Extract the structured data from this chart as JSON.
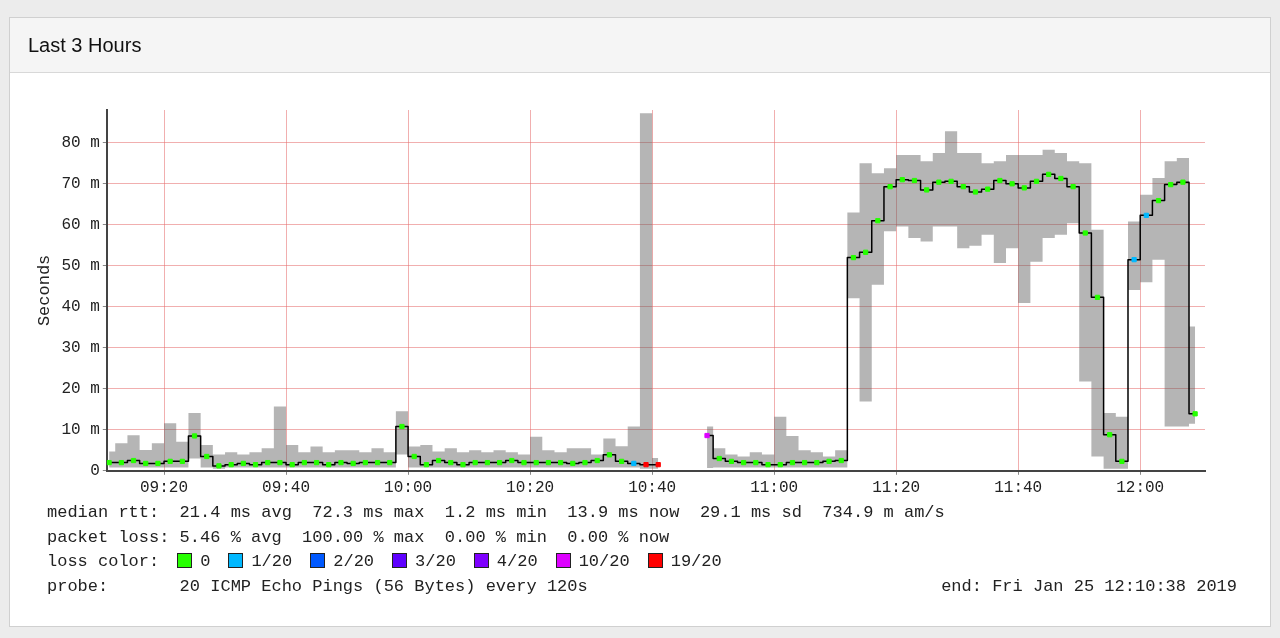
{
  "chart_data": {
    "type": "step",
    "title": "Last 3 Hours",
    "ylabel": "Seconds",
    "legend_title": "loss color:",
    "legend": "bottom",
    "grid": true,
    "marker": "square",
    "xlim": [
      9.177,
      12.177
    ],
    "xticks": [
      {
        "value": 9.3333,
        "label": "09:20"
      },
      {
        "value": 9.6667,
        "label": "09:40"
      },
      {
        "value": 10,
        "label": "10:00"
      },
      {
        "value": 10.3333,
        "label": "10:20"
      },
      {
        "value": 10.6667,
        "label": "10:40"
      },
      {
        "value": 11,
        "label": "11:00"
      },
      {
        "value": 11.3333,
        "label": "11:20"
      },
      {
        "value": 11.6667,
        "label": "11:40"
      },
      {
        "value": 12,
        "label": "12:00"
      }
    ],
    "ylim": [
      0,
      88
    ],
    "yticks": [
      0,
      {
        "value": 10,
        "label": "10 m"
      },
      {
        "value": 20,
        "label": "20 m"
      },
      {
        "value": 30,
        "label": "30 m"
      },
      {
        "value": 40,
        "label": "40 m"
      },
      {
        "value": 50,
        "label": "50 m"
      },
      {
        "value": 60,
        "label": "60 m"
      },
      {
        "value": 70,
        "label": "70 m"
      },
      {
        "value": 80,
        "label": "80 m"
      }
    ],
    "annotations": [
      "median rtt:  21.4 ms avg  72.3 ms max  1.2 ms min  13.9 ms now  29.1 ms sd  734.9 m am/s",
      "packet loss: 5.46 % avg  100.00 % max  0.00 % min  0.00 % now",
      "probe:       20 ICMP Echo Pings (56 Bytes) every 120s",
      "end: Fri Jan 25 12:10:38 2019"
    ],
    "x": [
      9.1833,
      9.2167,
      9.25,
      9.2833,
      9.3167,
      9.35,
      9.3833,
      9.4167,
      9.45,
      9.4833,
      9.5167,
      9.55,
      9.5833,
      9.6167,
      9.65,
      9.6833,
      9.7167,
      9.75,
      9.7833,
      9.8167,
      9.85,
      9.8833,
      9.9167,
      9.95,
      9.9833,
      10.0167,
      10.05,
      10.0833,
      10.1167,
      10.15,
      10.1833,
      10.2167,
      10.25,
      10.2833,
      10.3167,
      10.35,
      10.3833,
      10.4167,
      10.45,
      10.4833,
      10.5167,
      10.55,
      10.5833,
      10.6167,
      10.65,
      10.6833,
      10.7167,
      10.75,
      10.7833,
      10.8167,
      10.85,
      10.8833,
      10.9167,
      10.95,
      10.9833,
      11.0167,
      11.05,
      11.0833,
      11.1167,
      11.15,
      11.1833,
      11.2167,
      11.25,
      11.2833,
      11.3167,
      11.35,
      11.3833,
      11.4167,
      11.45,
      11.4833,
      11.5167,
      11.55,
      11.5833,
      11.6167,
      11.65,
      11.6833,
      11.7167,
      11.75,
      11.7833,
      11.8167,
      11.85,
      11.8833,
      11.9167,
      11.95,
      11.9833,
      12.0167,
      12.05,
      12.0833,
      12.1167,
      12.15
    ],
    "series": [
      {
        "color": "#000000",
        "marker": "none",
        "values": [
          2.0,
          2.0,
          2.5,
          1.8,
          1.8,
          2.3,
          2.3,
          8.5,
          3.5,
          1.2,
          1.5,
          1.8,
          1.5,
          2.0,
          2.0,
          1.5,
          2.0,
          2.0,
          1.5,
          2.0,
          1.8,
          2.0,
          2.0,
          2.0,
          10.8,
          3.5,
          1.5,
          2.5,
          2.0,
          1.5,
          2.0,
          2.0,
          2.0,
          2.5,
          2.0,
          2.0,
          2.0,
          2.0,
          1.8,
          2.0,
          2.5,
          3.9,
          2.3,
          1.8,
          1.5,
          1.5,
          null,
          null,
          null,
          8.6,
          3.0,
          2.3,
          2.0,
          2.0,
          1.5,
          1.5,
          2.0,
          2.0,
          2.0,
          2.3,
          2.5,
          52.0,
          53.3,
          61.0,
          69.3,
          71.0,
          70.8,
          68.5,
          70.4,
          70.6,
          69.3,
          68.0,
          68.7,
          70.8,
          70.0,
          69.0,
          70.6,
          72.3,
          71.3,
          69.3,
          58.0,
          42.3,
          8.8,
          2.3,
          51.5,
          62.3,
          65.9,
          69.8,
          70.4,
          13.9
        ],
        "upper": [
          4.7,
          6.7,
          8.7,
          5.1,
          6.7,
          11.6,
          7.1,
          14.1,
          6.3,
          4.0,
          4.5,
          4.0,
          4.5,
          5.5,
          15.7,
          6.3,
          4.5,
          5.9,
          4.5,
          5.0,
          5.0,
          4.5,
          5.5,
          4.5,
          14.5,
          5.9,
          6.3,
          4.7,
          5.5,
          4.5,
          5.0,
          4.5,
          5.0,
          4.5,
          4.0,
          8.3,
          5.0,
          4.5,
          5.5,
          5.5,
          4.0,
          7.9,
          6.0,
          10.8,
          87.2,
          3.1,
          null,
          null,
          null,
          10.8,
          5.5,
          4.0,
          3.5,
          4.5,
          4.0,
          13.2,
          8.5,
          5.0,
          4.5,
          3.5,
          5.0,
          63.0,
          75.0,
          72.6,
          73.8,
          77.0,
          77.0,
          75.5,
          77.5,
          82.8,
          77.5,
          77.5,
          75.0,
          75.5,
          77.0,
          77.0,
          77.0,
          78.3,
          77.5,
          75.5,
          75.0,
          58.8,
          14.1,
          13.2,
          60.8,
          67.3,
          71.4,
          75.5,
          76.3,
          35.2
        ],
        "lower": [
          0.8,
          0.8,
          0.8,
          0.8,
          0.8,
          0.8,
          0.8,
          3.0,
          0.8,
          0.5,
          0.8,
          0.8,
          0.8,
          0.8,
          0.8,
          0.8,
          0.8,
          0.8,
          0.8,
          0.8,
          0.8,
          0.8,
          0.8,
          0.8,
          4.0,
          0.8,
          0.8,
          0.8,
          0.8,
          0.8,
          0.8,
          0.8,
          0.8,
          0.8,
          0.8,
          0.8,
          0.8,
          0.8,
          0.8,
          0.8,
          0.8,
          0.8,
          0.8,
          0.8,
          0.5,
          0.5,
          null,
          null,
          null,
          0.7,
          0.8,
          0.8,
          0.8,
          0.8,
          0.8,
          0.8,
          0.8,
          0.8,
          0.8,
          0.8,
          0.8,
          42.1,
          16.9,
          45.4,
          58.4,
          59.6,
          56.8,
          55.9,
          59.6,
          59.6,
          54.3,
          54.9,
          57.6,
          50.7,
          54.3,
          40.9,
          51.0,
          56.8,
          57.6,
          60.4,
          21.8,
          3.5,
          0.5,
          0.5,
          44.1,
          46.0,
          51.5,
          10.8,
          10.8,
          11.5
        ]
      },
      {
        "type": "scatter",
        "name": "0",
        "color": "#26ff00",
        "x": [
          9.1833,
          9.2167,
          9.25,
          9.2833,
          9.3167,
          9.35,
          9.3833,
          9.4167,
          9.45,
          9.4833,
          9.5167,
          9.55,
          9.5833,
          9.6167,
          9.65,
          9.6833,
          9.7167,
          9.75,
          9.7833,
          9.8167,
          9.85,
          9.8833,
          9.9167,
          9.95,
          9.9833,
          10.0167,
          10.05,
          10.0833,
          10.1167,
          10.15,
          10.1833,
          10.2167,
          10.25,
          10.2833,
          10.3167,
          10.35,
          10.3833,
          10.4167,
          10.45,
          10.4833,
          10.5167,
          10.55,
          10.5833,
          10.85,
          10.8833,
          10.9167,
          10.95,
          10.9833,
          11.0167,
          11.05,
          11.0833,
          11.1167,
          11.15,
          11.1833,
          11.2167,
          11.25,
          11.2833,
          11.3167,
          11.35,
          11.3833,
          11.4167,
          11.45,
          11.4833,
          11.5167,
          11.55,
          11.5833,
          11.6167,
          11.65,
          11.6833,
          11.7167,
          11.75,
          11.7833,
          11.8167,
          11.85,
          11.8833,
          11.9167,
          11.95,
          12.05,
          12.0833,
          12.1167,
          12.15
        ],
        "values": [
          2.0,
          2.0,
          2.5,
          1.8,
          1.8,
          2.3,
          2.3,
          8.5,
          3.5,
          1.2,
          1.5,
          1.8,
          1.5,
          2.0,
          2.0,
          1.5,
          2.0,
          2.0,
          1.5,
          2.0,
          1.8,
          2.0,
          2.0,
          2.0,
          10.8,
          3.5,
          1.5,
          2.5,
          2.0,
          1.5,
          2.0,
          2.0,
          2.0,
          2.5,
          2.0,
          2.0,
          2.0,
          2.0,
          1.8,
          2.0,
          2.5,
          3.9,
          2.3,
          3.0,
          2.3,
          2.0,
          2.0,
          1.5,
          1.5,
          2.0,
          2.0,
          2.0,
          2.3,
          2.5,
          52.0,
          53.3,
          61.0,
          69.3,
          71.0,
          70.8,
          68.5,
          70.4,
          70.6,
          69.3,
          68.0,
          68.7,
          70.8,
          70.0,
          69.0,
          70.6,
          72.3,
          71.3,
          69.3,
          58.0,
          42.3,
          8.8,
          2.3,
          65.9,
          69.8,
          70.4,
          13.9
        ]
      },
      {
        "type": "scatter",
        "name": "1/20",
        "color": "#00b8ff",
        "x": [
          10.6167,
          11.9833,
          12.0167
        ],
        "values": [
          1.8,
          51.5,
          62.3
        ]
      },
      {
        "type": "scatter",
        "name": "2/20",
        "color": "#0059ff",
        "values": [
          null,
          null,
          null,
          null,
          null,
          null,
          null,
          null,
          null,
          null,
          null,
          null,
          null,
          null,
          null,
          null,
          null,
          null,
          null,
          null,
          null,
          null,
          null,
          null,
          null,
          null,
          null,
          null,
          null,
          null,
          null,
          null,
          null,
          null,
          null,
          null,
          null,
          null,
          null,
          null,
          null,
          null,
          null,
          null,
          null,
          null,
          null,
          null,
          null,
          null,
          null,
          null,
          null,
          null,
          null,
          null,
          null,
          null,
          null,
          null,
          null,
          null,
          null,
          null,
          null,
          null,
          null,
          null,
          null,
          null,
          null,
          null,
          null,
          null,
          null,
          null,
          null,
          null,
          null,
          null,
          null,
          null,
          null,
          null,
          null,
          null,
          null,
          null,
          null,
          null
        ]
      },
      {
        "type": "scatter",
        "name": "3/20",
        "color": "#5e00ff",
        "values": [
          null,
          null,
          null,
          null,
          null,
          null,
          null,
          null,
          null,
          null,
          null,
          null,
          null,
          null,
          null,
          null,
          null,
          null,
          null,
          null,
          null,
          null,
          null,
          null,
          null,
          null,
          null,
          null,
          null,
          null,
          null,
          null,
          null,
          null,
          null,
          null,
          null,
          null,
          null,
          null,
          null,
          null,
          null,
          null,
          null,
          null,
          null,
          null,
          null,
          null,
          null,
          null,
          null,
          null,
          null,
          null,
          null,
          null,
          null,
          null,
          null,
          null,
          null,
          null,
          null,
          null,
          null,
          null,
          null,
          null,
          null,
          null,
          null,
          null,
          null,
          null,
          null,
          null,
          null,
          null,
          null,
          null,
          null,
          null,
          null,
          null,
          null,
          null,
          null,
          null
        ]
      },
      {
        "type": "scatter",
        "name": "4/20",
        "color": "#7e00ff",
        "values": [
          null,
          null,
          null,
          null,
          null,
          null,
          null,
          null,
          null,
          null,
          null,
          null,
          null,
          null,
          null,
          null,
          null,
          null,
          null,
          null,
          null,
          null,
          null,
          null,
          null,
          null,
          null,
          null,
          null,
          null,
          null,
          null,
          null,
          null,
          null,
          null,
          null,
          null,
          null,
          null,
          null,
          null,
          null,
          null,
          null,
          null,
          null,
          null,
          null,
          null,
          null,
          null,
          null,
          null,
          null,
          null,
          null,
          null,
          null,
          null,
          null,
          null,
          null,
          null,
          null,
          null,
          null,
          null,
          null,
          null,
          null,
          null,
          null,
          null,
          null,
          null,
          null,
          null,
          null,
          null,
          null,
          null,
          null,
          null,
          null,
          null,
          null,
          null,
          null,
          null
        ]
      },
      {
        "type": "scatter",
        "name": "10/20",
        "color": "#dd00ff",
        "x": [
          10.8167
        ],
        "values": [
          8.6
        ]
      },
      {
        "type": "scatter",
        "name": "19/20",
        "color": "#ff0000",
        "x": [
          10.65,
          10.6833
        ],
        "values": [
          1.5,
          1.5
        ]
      }
    ]
  }
}
